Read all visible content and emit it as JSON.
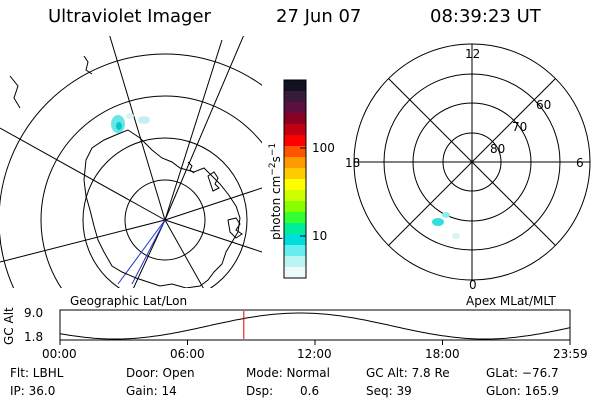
{
  "header": {
    "title": "Ultraviolet Imager",
    "date": "27 Jun 07",
    "time": "08:39:23 UT"
  },
  "left_panel": {
    "caption": "Geographic Lat/Lon"
  },
  "colorbar": {
    "unit": "photon cm",
    "unit_exp1": "−2",
    "unit_s": "s",
    "unit_exp2": "−1",
    "ticks": [
      "100",
      "10"
    ],
    "colors": [
      "#111122",
      "#3a1a3a",
      "#5a1040",
      "#8a0020",
      "#c00010",
      "#ff0000",
      "#ff5500",
      "#ff9900",
      "#ffcc00",
      "#ffff00",
      "#ccff00",
      "#88ff00",
      "#33ff33",
      "#00ee99",
      "#00dddd",
      "#66eeee",
      "#bbf4f4",
      "#eefafa"
    ]
  },
  "right_panel": {
    "caption": "Apex MLat/MLT",
    "mlt_labels": {
      "top": "12",
      "bottom": "0",
      "left": "18",
      "right": "6"
    },
    "lat_labels": [
      "60",
      "70",
      "80"
    ]
  },
  "altitude": {
    "ylabel": "GC Alt",
    "ymax": "9.0",
    "ymin": "1.8",
    "xticks": [
      "00:00",
      "06:00",
      "12:00",
      "18:00",
      "23:59"
    ],
    "current_marker_hours": 8.65
  },
  "info": {
    "flt": "Flt: LBHL",
    "ip": "IP: 36.0",
    "door": "Door: Open",
    "gain": "Gain: 14",
    "mode": "Mode: Normal",
    "dsp_label": "Dsp:",
    "dsp_value": "0.6",
    "gcalt": "GC Alt: 7.8 Re",
    "seq": "Seq: 39",
    "glat": "GLat: −76.7",
    "glon": "GLon: 165.9"
  }
}
